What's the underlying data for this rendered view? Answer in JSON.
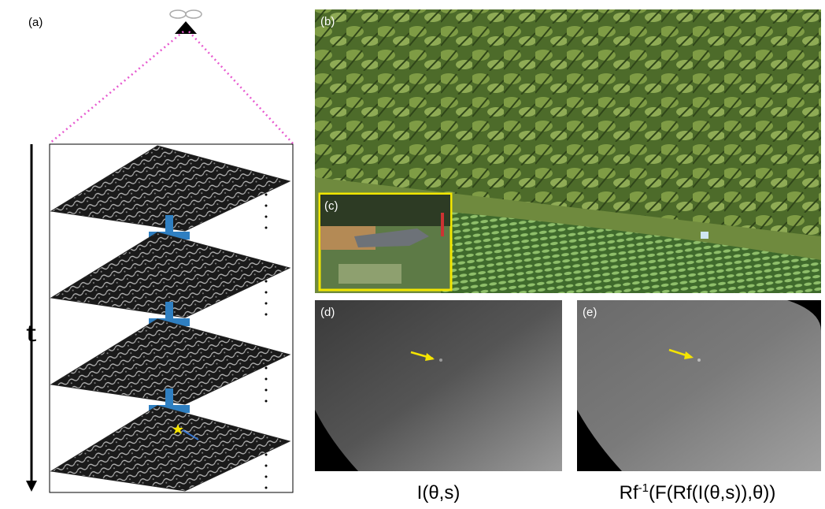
{
  "panels": {
    "a": {
      "label": "(a)",
      "time_axis": "t"
    },
    "b": {
      "label": "(b)"
    },
    "c": {
      "label": "(c)"
    },
    "d": {
      "label": "(d)",
      "caption": "I(θ,s)"
    },
    "e": {
      "label": "(e)",
      "caption": {
        "base": "Rf",
        "superscript": "-1",
        "rest": "(F(Rf(I(θ,s)),θ))"
      }
    }
  }
}
